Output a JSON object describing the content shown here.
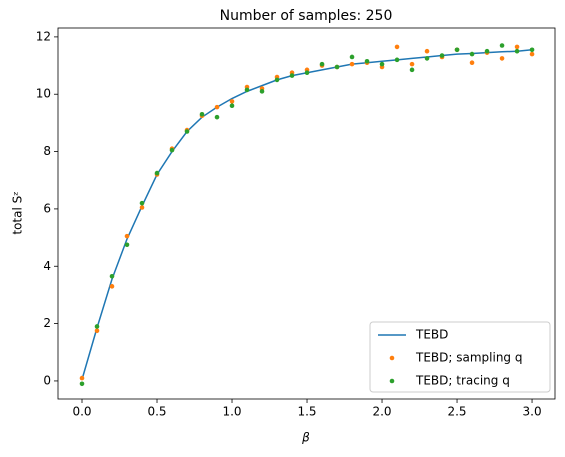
{
  "chart_data": {
    "type": "line",
    "title": "Number of samples: 250",
    "x_label": "β",
    "y_label": "total Sᶻ",
    "x": [
      0.0,
      0.1,
      0.2,
      0.3,
      0.4,
      0.5,
      0.6,
      0.7,
      0.8,
      0.9,
      1.0,
      1.1,
      1.2,
      1.3,
      1.4,
      1.5,
      1.6,
      1.7,
      1.8,
      1.9,
      2.0,
      2.1,
      2.2,
      2.3,
      2.4,
      2.5,
      2.6,
      2.7,
      2.8,
      2.9,
      3.0
    ],
    "series": [
      {
        "name": "TEBD",
        "color": "#1f77b4",
        "mode": "line",
        "values": [
          0.05,
          1.85,
          3.55,
          4.95,
          6.1,
          7.2,
          8.0,
          8.7,
          9.2,
          9.55,
          9.85,
          10.1,
          10.3,
          10.5,
          10.65,
          10.75,
          10.85,
          10.95,
          11.05,
          11.1,
          11.15,
          11.2,
          11.25,
          11.3,
          11.35,
          11.4,
          11.42,
          11.45,
          11.48,
          11.5,
          11.55
        ]
      },
      {
        "name": "TEBD; sampling q",
        "color": "#ff7f0e",
        "mode": "markers",
        "values": [
          0.1,
          1.75,
          3.3,
          5.05,
          6.05,
          7.2,
          8.1,
          8.75,
          9.25,
          9.55,
          9.75,
          10.25,
          10.2,
          10.6,
          10.75,
          10.85,
          11.0,
          10.95,
          11.05,
          11.1,
          10.95,
          11.65,
          11.05,
          11.5,
          11.3,
          11.55,
          11.1,
          11.45,
          11.25,
          11.65,
          11.4
        ]
      },
      {
        "name": "TEBD; tracing q",
        "color": "#2ca02c",
        "mode": "markers",
        "values": [
          -0.1,
          1.9,
          3.65,
          4.75,
          6.2,
          7.25,
          8.05,
          8.7,
          9.3,
          9.2,
          9.6,
          10.15,
          10.1,
          10.5,
          10.65,
          10.75,
          11.05,
          10.95,
          11.3,
          11.15,
          11.05,
          11.2,
          10.85,
          11.25,
          11.35,
          11.55,
          11.4,
          11.5,
          11.7,
          11.5,
          11.55
        ]
      }
    ],
    "xlim": [
      -0.16,
      3.153
    ],
    "ylim": [
      -0.63,
      12.31
    ],
    "xticks": [
      {
        "value": 0,
        "label": "0.0"
      },
      {
        "value": 0.5,
        "label": "0.5"
      },
      {
        "value": 1,
        "label": "1.0"
      },
      {
        "value": 1.5,
        "label": "1.5"
      },
      {
        "value": 2,
        "label": "2.0"
      },
      {
        "value": 2.5,
        "label": "2.5"
      },
      {
        "value": 3,
        "label": "3.0"
      }
    ],
    "yticks": [
      0,
      2,
      4,
      6,
      8,
      10,
      12
    ],
    "grid": false,
    "legend_position": "lower right"
  }
}
